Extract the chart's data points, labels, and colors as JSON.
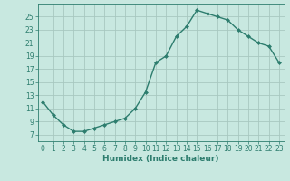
{
  "x": [
    0,
    1,
    2,
    3,
    4,
    5,
    6,
    7,
    8,
    9,
    10,
    11,
    12,
    13,
    14,
    15,
    16,
    17,
    18,
    19,
    20,
    21,
    22,
    23
  ],
  "y": [
    12,
    10,
    8.5,
    7.5,
    7.5,
    8,
    8.5,
    9,
    9.5,
    11,
    13.5,
    18,
    19,
    22,
    23.5,
    26,
    25.5,
    25,
    24.5,
    23,
    22,
    21,
    20.5,
    18
  ],
  "line_color": "#2d7d6e",
  "marker": "D",
  "marker_size": 2,
  "bg_color": "#c8e8e0",
  "grid_color": "#a8c8c0",
  "xlabel": "Humidex (Indice chaleur)",
  "xlim": [
    -0.5,
    23.5
  ],
  "ylim": [
    6,
    27
  ],
  "yticks": [
    7,
    9,
    11,
    13,
    15,
    17,
    19,
    21,
    23,
    25
  ],
  "xticks": [
    0,
    1,
    2,
    3,
    4,
    5,
    6,
    7,
    8,
    9,
    10,
    11,
    12,
    13,
    14,
    15,
    16,
    17,
    18,
    19,
    20,
    21,
    22,
    23
  ],
  "label_fontsize": 6.5,
  "tick_fontsize": 5.5
}
